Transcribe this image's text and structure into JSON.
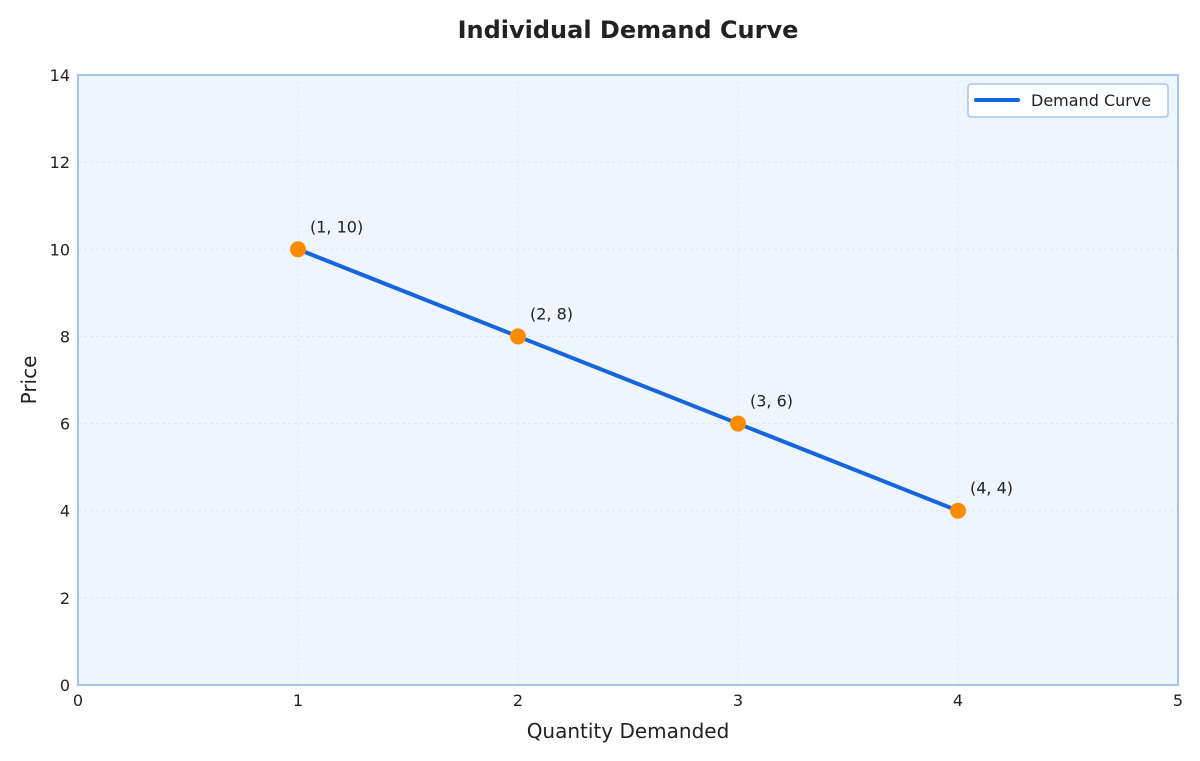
{
  "colors": {
    "plot_background": "#EFF5FC",
    "plot_border": "#A6C4F2",
    "grid": "#DCE6F2",
    "line": "#1565E0",
    "marker": "#FF8C00",
    "legend_border": "#A6C4F2"
  },
  "chart_data": {
    "type": "line",
    "title": "Individual Demand Curve",
    "xlabel": "Quantity Demanded",
    "ylabel": "Price",
    "xlim": [
      0,
      5
    ],
    "ylim": [
      0,
      14
    ],
    "xticks": [
      0,
      1,
      2,
      3,
      4,
      5
    ],
    "yticks": [
      0,
      2,
      4,
      6,
      8,
      10,
      12,
      14
    ],
    "grid": true,
    "legend_position": "top-right",
    "series": [
      {
        "name": "Demand Curve",
        "x": [
          1,
          2,
          3,
          4
        ],
        "y": [
          10,
          8,
          6,
          4
        ],
        "marker": "circle",
        "point_labels": [
          "(1, 10)",
          "(2, 8)",
          "(3, 6)",
          "(4, 4)"
        ]
      }
    ]
  }
}
